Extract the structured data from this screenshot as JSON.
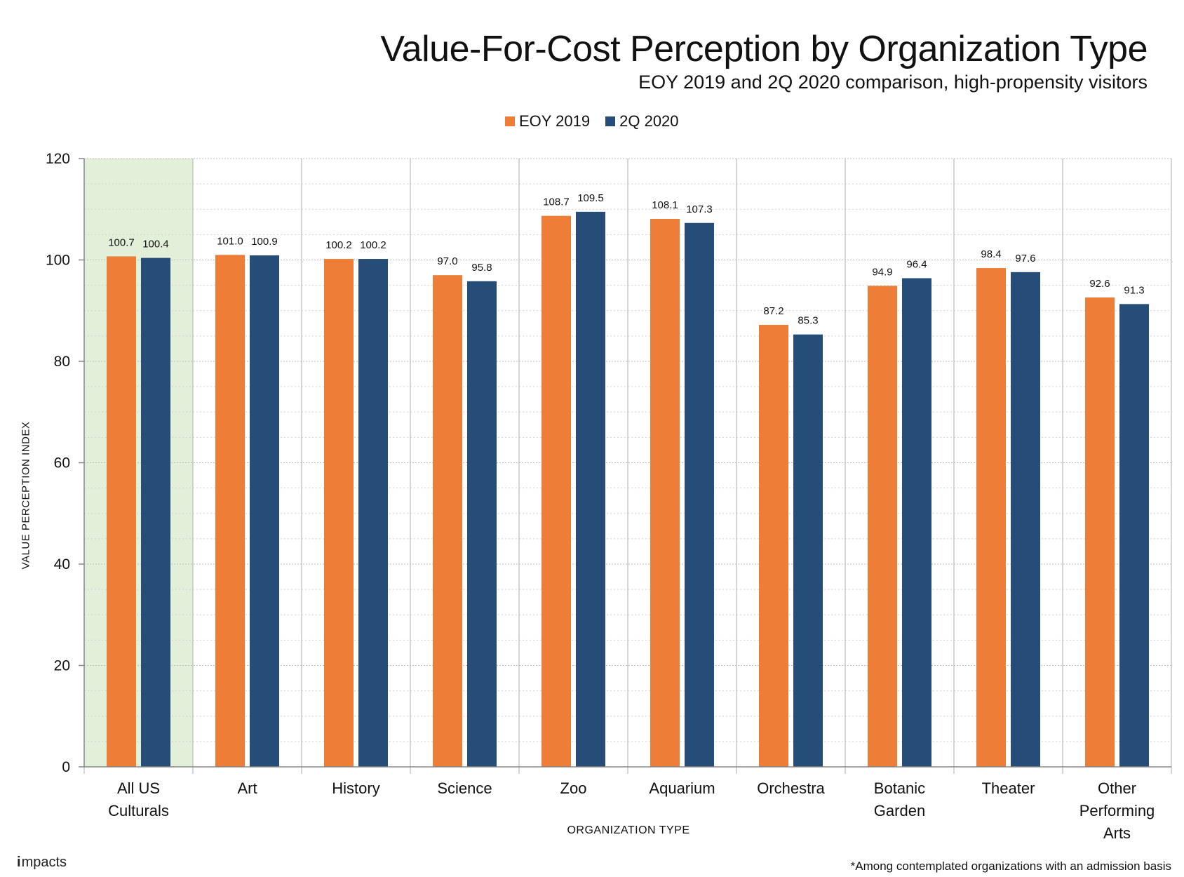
{
  "colors": {
    "series1": "#ED7D37",
    "series2": "#264D78",
    "highlight_bg": "#E2EFD9",
    "grid_major": "#BDBDBD",
    "grid_minor": "#D3D3D3"
  },
  "logo": {
    "text": "mpacts",
    "i": "i"
  },
  "footnote": "*Among contemplated organizations with an admission basis",
  "chart_data": {
    "type": "bar",
    "title": "Value-For-Cost Perception by Organization Type",
    "subtitle": "EOY 2019 and 2Q 2020 comparison, high-propensity visitors",
    "xlabel": "ORGANIZATION TYPE",
    "ylabel": "VALUE PERCEPTION INDEX",
    "ylim": [
      0,
      120
    ],
    "yticks": [
      0,
      20,
      40,
      60,
      80,
      100,
      120
    ],
    "minor_gridlines": true,
    "legend_position": "top-center",
    "highlighted_category": "All US Culturals",
    "categories": [
      [
        "All US",
        "Culturals"
      ],
      [
        "Art"
      ],
      [
        "History"
      ],
      [
        "Science"
      ],
      [
        "Zoo"
      ],
      [
        "Aquarium"
      ],
      [
        "Orchestra"
      ],
      [
        "Botanic",
        "Garden"
      ],
      [
        "Theater"
      ],
      [
        "Other",
        "Performing",
        "Arts"
      ]
    ],
    "series": [
      {
        "name": "EOY 2019",
        "values": [
          100.7,
          101.0,
          100.2,
          97.0,
          108.7,
          108.1,
          87.2,
          94.9,
          98.4,
          92.6
        ]
      },
      {
        "name": "2Q 2020",
        "values": [
          100.4,
          100.9,
          100.2,
          95.8,
          109.5,
          107.3,
          85.3,
          96.4,
          97.6,
          91.3
        ]
      }
    ]
  }
}
